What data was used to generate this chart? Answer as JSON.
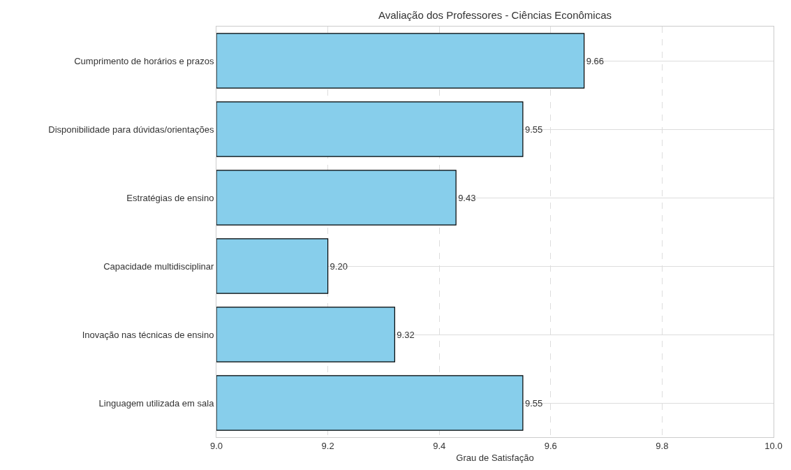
{
  "chart_data": {
    "type": "bar",
    "orientation": "horizontal",
    "title": "Avaliação dos Professores - Ciências Econômicas",
    "xlabel": "Grau de Satisfação",
    "categories": [
      "Cumprimento de horários e prazos",
      "Disponibilidade para dúvidas/orientações",
      "Estratégias de ensino",
      "Capacidade multidisciplinar",
      "Inovação nas técnicas de ensino",
      "Linguagem utilizada em sala"
    ],
    "values": [
      9.66,
      9.55,
      9.43,
      9.2,
      9.32,
      9.55
    ],
    "value_labels": [
      "9.66",
      "9.55",
      "9.43",
      "9.20",
      "9.32",
      "9.55"
    ],
    "color": "#87ceeb",
    "xlim": [
      9.0,
      10.0
    ],
    "xticks": [
      {
        "value": 9.0,
        "label": "9.0"
      },
      9.2,
      9.4,
      9.6,
      9.8,
      {
        "value": 10.0,
        "label": "10.0"
      }
    ],
    "grid": true
  }
}
